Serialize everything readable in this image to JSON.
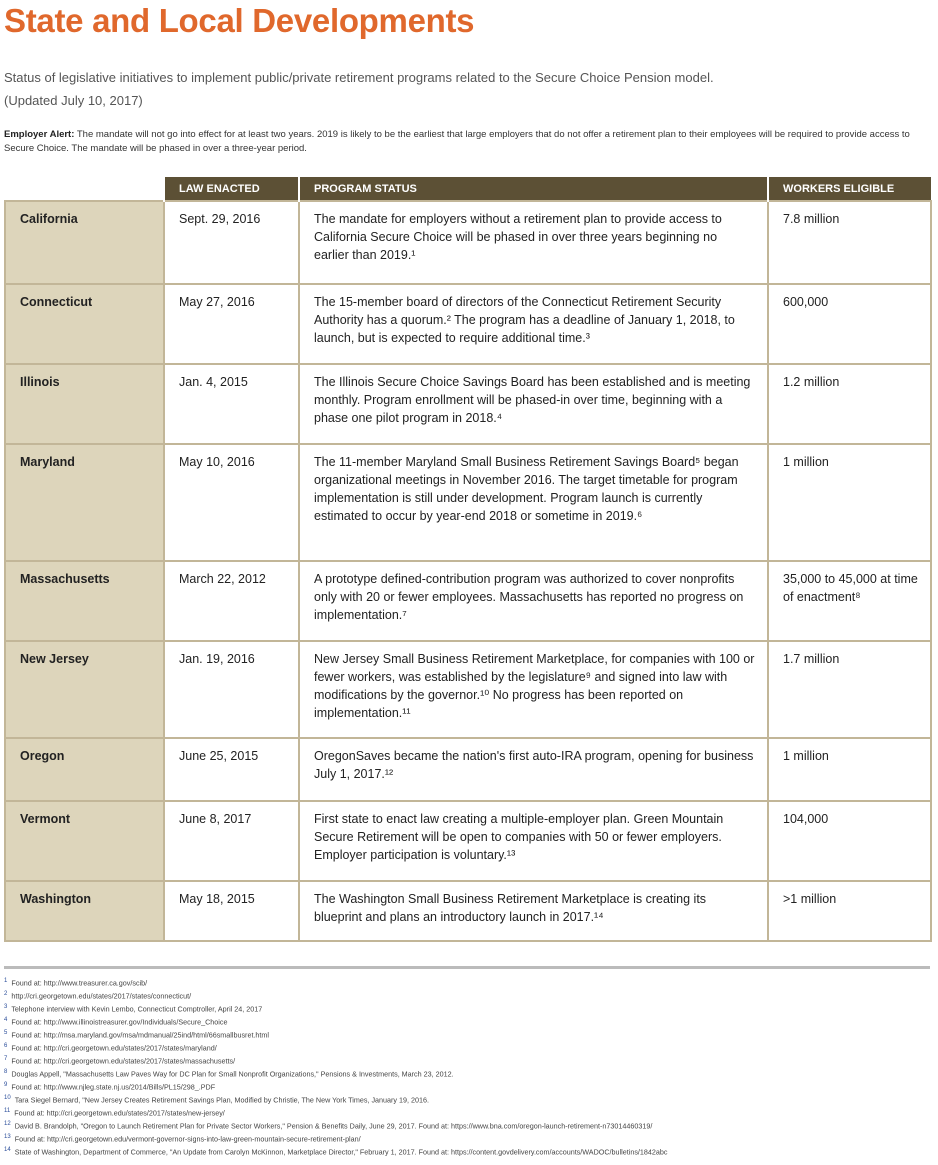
{
  "title": "State and Local Developments",
  "subtitle": "Status of legislative initiatives to implement public/private retirement programs related to the Secure Choice Pension model.",
  "updated": "(Updated July 10, 2017)",
  "alert": {
    "label": "Employer Alert:",
    "text": " The mandate will not go into effect for at least two years. 2019 is likely to be the earliest that large employers that do not offer a retirement plan to their employees will be required to provide access to Secure Choice. The mandate will be phased in over a three-year period."
  },
  "table": {
    "headers": [
      "LAW ENACTED",
      "PROGRAM STATUS",
      "WORKERS ELIGIBLE"
    ],
    "rows": [
      {
        "state": "California",
        "date": "Sept. 29, 2016",
        "status": "The mandate for employers without a retirement plan to provide access to California Secure Choice will be phased in over three years beginning no earlier than 2019.¹",
        "workers": "7.8 million"
      },
      {
        "state": "Connecticut",
        "date": "May 27, 2016",
        "status": "The 15-member board of directors of the Connecticut Retirement Security Authority has a quorum.² The program has a deadline of January 1, 2018, to launch, but is expected to require additional time.³",
        "workers": "600,000"
      },
      {
        "state": "Illinois",
        "date": "Jan. 4, 2015",
        "status": "The Illinois Secure Choice Savings Board has been established and is meeting monthly. Program enrollment will be phased-in over time, beginning with a phase one pilot program in 2018.⁴",
        "workers": "1.2 million"
      },
      {
        "state": "Maryland",
        "date": "May 10, 2016",
        "status": "The 11-member Maryland Small Business Retirement Savings Board⁵ began organizational meetings in November 2016. The target timetable for program implementation is still under development. Program launch is currently estimated to occur by year-end 2018 or sometime in 2019.⁶",
        "workers": "1 million"
      },
      {
        "state": "Massachusetts",
        "date": "March 22, 2012",
        "status": "A prototype defined-contribution program was authorized to cover nonprofits only with 20 or fewer employees. Massachusetts has reported no progress on implementation.⁷",
        "workers": "35,000 to 45,000 at time of enactment⁸"
      },
      {
        "state": "New Jersey",
        "date": "Jan. 19, 2016",
        "status": "New Jersey Small Business Retirement Marketplace, for companies with 100 or fewer workers, was established by the legislature⁹ and signed into law with modifications by the governor.¹⁰ No progress has been reported on implementation.¹¹",
        "workers": "1.7 million"
      },
      {
        "state": "Oregon",
        "date": "June 25, 2015",
        "status": "OregonSaves became the nation's first auto-IRA program, opening for business July 1, 2017.¹²",
        "workers": "1 million"
      },
      {
        "state": "Vermont",
        "date": "June 8, 2017",
        "status": "First state to enact law creating a multiple-employer plan. Green Mountain Secure Retirement will be open to companies with 50 or fewer employers. Employer participation is voluntary.¹³",
        "workers": "104,000"
      },
      {
        "state": "Washington",
        "date": "May 18, 2015",
        "status": "The Washington Small Business Retirement Marketplace is creating its blueprint and plans an introductory launch in 2017.¹⁴",
        "workers": ">1 million"
      }
    ]
  },
  "footnotes": [
    {
      "n": "1",
      "text": "Found at: http://www.treasurer.ca.gov/scib/"
    },
    {
      "n": "2",
      "text": "http://cri.georgetown.edu/states/2017/states/connecticut/"
    },
    {
      "n": "3",
      "text": "Telephone interview with Kevin Lembo, Connecticut Comptroller, April 24, 2017"
    },
    {
      "n": "4",
      "text": "Found at: http://www.illinoistreasurer.gov/Individuals/Secure_Choice"
    },
    {
      "n": "5",
      "text": "Found at: http://msa.maryland.gov/msa/mdmanual/25ind/html/66smallbusret.html"
    },
    {
      "n": "6",
      "text": "Found at: http://cri.georgetown.edu/states/2017/states/maryland/"
    },
    {
      "n": "7",
      "text": "Found at: http://cri.georgetown.edu/states/2017/states/massachusetts/"
    },
    {
      "n": "8",
      "text": "Douglas Appell, \"Massachusetts Law Paves Way for DC Plan for Small Nonprofit Organizations,\" Pensions & Investments, March 23, 2012."
    },
    {
      "n": "9",
      "text": "Found at: http://www.njleg.state.nj.us/2014/Bills/PL15/298_.PDF"
    },
    {
      "n": "10",
      "text": "Tara Siegel Bernard, \"New Jersey Creates Retirement Savings Plan, Modified by Christie, The New York Times, January 19, 2016."
    },
    {
      "n": "11",
      "text": "Found at: http://cri.georgetown.edu/states/2017/states/new-jersey/"
    },
    {
      "n": "12",
      "text": "David B. Brandolph, \"Oregon to Launch Retirement Plan for Private Sector Workers,\" Pension & Benefits Daily, June 29, 2017. Found at: https://www.bna.com/oregon-launch-retirement-n73014460319/"
    },
    {
      "n": "13",
      "text": "Found at: http://cri.georgetown.edu/vermont-governor-signs-into-law-green-mountain-secure-retirement-plan/"
    },
    {
      "n": "14",
      "text": "State of Washington, Department of Commerce, \"An Update from Carolyn McKinnon, Marketplace Director,\" February 1, 2017. Found at: https://content.govdelivery.com/accounts/WADOC/bulletins/1842abc"
    }
  ]
}
